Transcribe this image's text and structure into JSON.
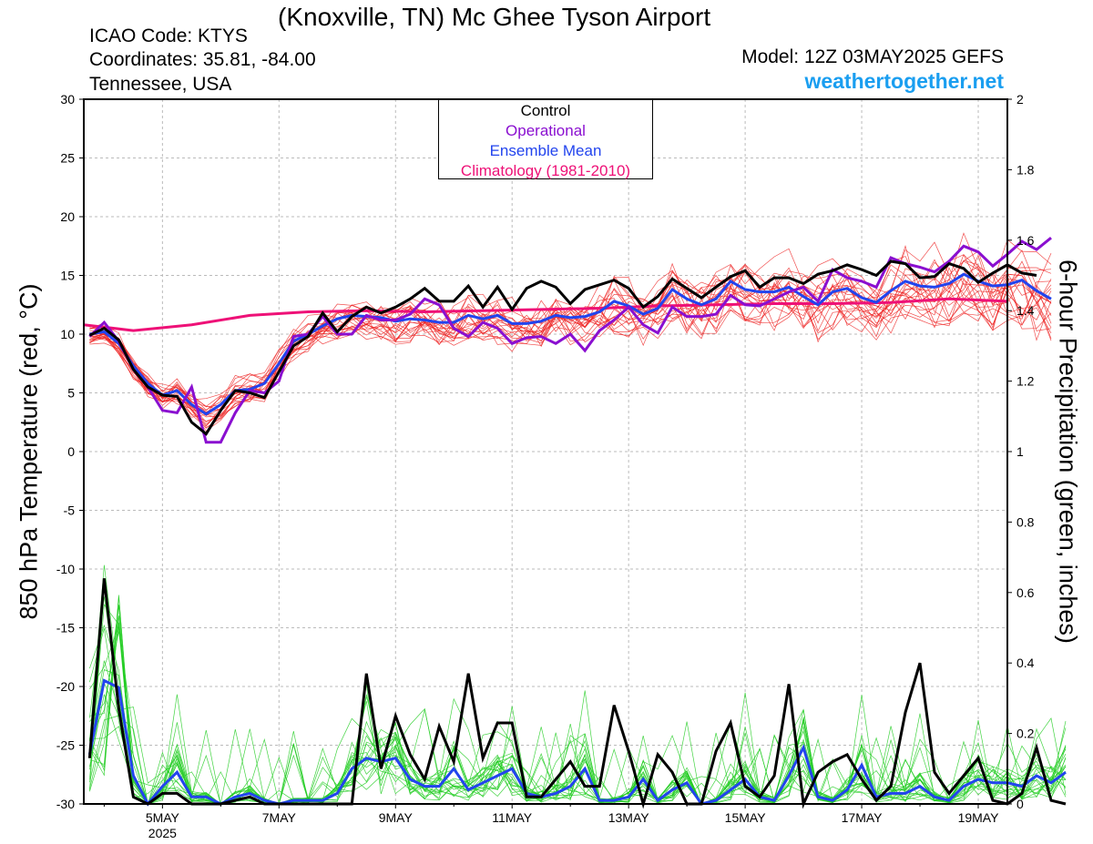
{
  "header": {
    "title": "(Knoxville, TN) Mc Ghee Tyson Airport",
    "icao": "ICAO Code: KTYS",
    "coords": "Coordinates: 35.81, -84.00",
    "region": "Tennessee, USA",
    "model": "Model: 12Z 03MAY2025 GEFS",
    "site": "weathertogether.net"
  },
  "legend": {
    "control": "Control",
    "operational": "Operational",
    "mean": "Ensemble Mean",
    "clim": "Climatology (1981-2010)"
  },
  "colors": {
    "control": "#000000",
    "operational": "#8a0fd0",
    "mean": "#2244ee",
    "clim": "#ee1177",
    "members_temp": "#ee2222",
    "members_precip": "#22cc22",
    "site": "#1a9ef0",
    "grid": "#bbbbbb"
  },
  "chart_data": {
    "type": "line",
    "title": "(Knoxville, TN) Mc Ghee Tyson Airport",
    "ylabel": "850 hPa Temperature (red, °C)",
    "y2label": "6-hour Precipitation (green, inches)",
    "xlim_day": [
      3.65,
      19.5
    ],
    "ylim": [
      -30,
      30
    ],
    "y2lim": [
      0,
      2
    ],
    "grid": true,
    "x_ticks": [
      {
        "day": 5,
        "label": "5MAY",
        "sublabel": "2025"
      },
      {
        "day": 7,
        "label": "7MAY"
      },
      {
        "day": 9,
        "label": "9MAY"
      },
      {
        "day": 11,
        "label": "11MAY"
      },
      {
        "day": 13,
        "label": "13MAY"
      },
      {
        "day": 15,
        "label": "15MAY"
      },
      {
        "day": 17,
        "label": "17MAY"
      },
      {
        "day": 19,
        "label": "19MAY"
      }
    ],
    "y_ticks": [
      -30,
      -25,
      -20,
      -15,
      -10,
      -5,
      0,
      5,
      10,
      15,
      20,
      25,
      30
    ],
    "y2_ticks": [
      0,
      0.2,
      0.4,
      0.6,
      0.8,
      1,
      1.2,
      1.4,
      1.6,
      1.8,
      2
    ],
    "time_start_day": 3.75,
    "time_step_days": 0.25,
    "temperature": {
      "control": [
        9.9,
        10.5,
        9.5,
        7,
        5.5,
        4.8,
        4.7,
        2.5,
        1.5,
        3.5,
        5.2,
        5,
        4.6,
        6.8,
        9,
        9.8,
        11.8,
        10.2,
        11.5,
        12.3,
        11.8,
        12.3,
        13,
        13.9,
        12.8,
        12.8,
        14.1,
        12.3,
        14,
        12.1,
        13.9,
        14.5,
        14,
        12.6,
        13.8,
        14.2,
        14.6,
        13.9,
        12.3,
        13.2,
        14.7,
        13.9,
        13.1,
        14,
        14.9,
        15.4,
        14,
        14.8,
        14.8,
        14.3,
        15.1,
        15.4,
        15.9,
        15.5,
        15,
        16.2,
        16,
        14.8,
        14.9,
        16,
        15.6,
        14.4,
        15.2,
        15.9,
        15.2,
        15
      ],
      "operational": [
        9.8,
        11,
        9.4,
        7,
        5.5,
        3.5,
        3.3,
        5.5,
        0.8,
        0.8,
        3.3,
        5.2,
        5,
        6,
        9.8,
        10,
        11.5,
        10,
        10,
        11.6,
        11.2,
        11.2,
        11.7,
        13,
        12.5,
        10.5,
        9.8,
        11,
        10.5,
        9.2,
        9.7,
        9.8,
        9.2,
        10,
        8.6,
        10.3,
        11.2,
        12.3,
        10.8,
        10.1,
        12.3,
        11.5,
        11.5,
        11.7,
        13.3,
        12.5,
        12.4,
        13,
        13.6,
        14,
        12.8,
        15.5,
        14.8,
        14.5,
        14,
        16.5,
        16,
        15.7,
        15.3,
        16.2,
        17.5,
        17,
        15.8,
        16.8,
        17.9,
        17.2,
        18.2
      ],
      "mean": [
        10,
        10.2,
        9.2,
        7.3,
        5.8,
        4.8,
        5.2,
        4,
        3.2,
        4,
        5.2,
        5.3,
        5.8,
        7.5,
        9.4,
        10,
        10.7,
        11.3,
        11.6,
        11.5,
        11.4,
        11.1,
        11.3,
        11.2,
        11,
        11,
        11.6,
        11.3,
        11.6,
        10.9,
        10.9,
        11.1,
        11.6,
        11.4,
        11.5,
        11.9,
        12.8,
        12.4,
        11.7,
        12.2,
        13.8,
        13,
        12.5,
        13,
        14.5,
        13.8,
        13.6,
        13.6,
        14,
        13.2,
        12.5,
        13.6,
        13.9,
        13.1,
        12.7,
        13.7,
        14.5,
        14.1,
        14,
        14.3,
        15.1,
        14.5,
        14.1,
        14.2,
        14.6,
        13.7,
        13
      ],
      "climatology": [
        [
          3.65,
          10.8
        ],
        [
          4.5,
          10.3
        ],
        [
          5.5,
          10.8
        ],
        [
          6.5,
          11.6
        ],
        [
          7.5,
          11.9
        ],
        [
          8.5,
          12
        ],
        [
          9.5,
          11.9
        ],
        [
          10.5,
          12
        ],
        [
          11.5,
          12.1
        ],
        [
          12.5,
          12.2
        ],
        [
          13.5,
          12.4
        ],
        [
          14.5,
          12.5
        ],
        [
          15.5,
          12.6
        ],
        [
          16.5,
          12.6
        ],
        [
          17.5,
          12.7
        ],
        [
          18.5,
          13
        ],
        [
          19.5,
          12.8
        ]
      ]
    },
    "precipitation": {
      "control": [
        0.13,
        0.64,
        0.27,
        0.02,
        0,
        0.03,
        0.03,
        0,
        0,
        0,
        0.01,
        0.02,
        0,
        0,
        0,
        0,
        0,
        0,
        0,
        0.37,
        0.1,
        0.25,
        0.14,
        0.07,
        0.22,
        0.12,
        0.37,
        0.13,
        0.23,
        0.23,
        0.02,
        0.02,
        0.07,
        0.12,
        0.05,
        0.05,
        0.28,
        0.15,
        0,
        0.14,
        0.09,
        0,
        0,
        0.15,
        0.23,
        0.05,
        0.02,
        0.08,
        0.34,
        0,
        0.09,
        0.12,
        0.14,
        0.07,
        0.01,
        0.05,
        0.26,
        0.4,
        0.09,
        0.03,
        0.08,
        0.13,
        0.01,
        0,
        0.03,
        0.16,
        0.01,
        0
      ],
      "mean": [
        0.14,
        0.35,
        0.33,
        0.08,
        0,
        0.05,
        0.09,
        0.02,
        0.02,
        0,
        0.02,
        0.03,
        0.01,
        0,
        0.01,
        0.01,
        0.01,
        0.03,
        0.1,
        0.13,
        0.12,
        0.13,
        0.07,
        0.05,
        0.05,
        0.1,
        0.04,
        0.06,
        0.08,
        0.1,
        0.03,
        0.02,
        0.03,
        0.05,
        0.1,
        0.01,
        0.01,
        0.02,
        0.07,
        0.01,
        0.04,
        0.06,
        0,
        0.01,
        0.04,
        0.07,
        0.02,
        0.01,
        0.08,
        0.16,
        0.02,
        0.01,
        0.04,
        0.11,
        0.02,
        0.03,
        0.03,
        0.05,
        0.02,
        0.01,
        0.05,
        0.07,
        0.06,
        0.06,
        0.05,
        0.08,
        0.06,
        0.09
      ]
    }
  }
}
